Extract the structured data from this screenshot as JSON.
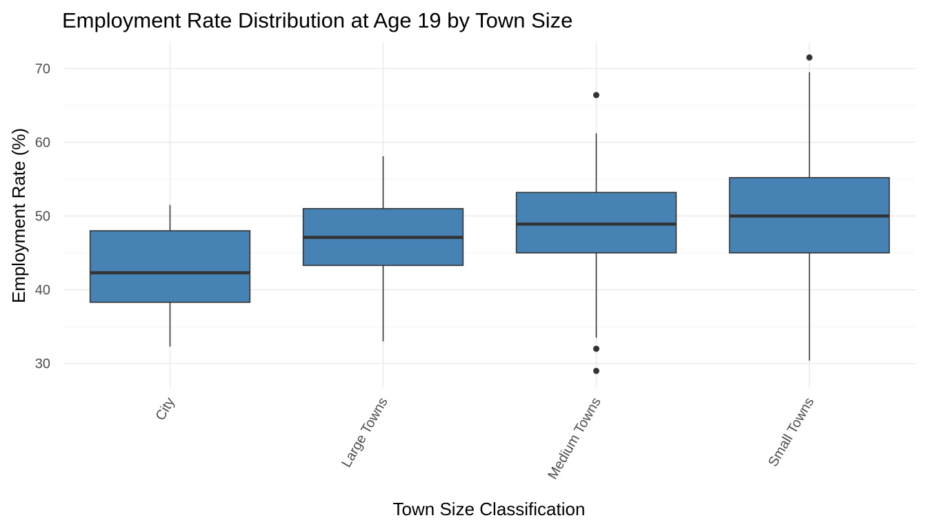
{
  "chart_data": {
    "type": "box",
    "title": "Employment Rate Distribution at Age 19 by Town Size",
    "xlabel": "Town Size Classification",
    "ylabel": "Employment Rate (%)",
    "ylim": [
      26.8,
      73.5
    ],
    "yticks": [
      30,
      40,
      50,
      60,
      70
    ],
    "grid": true,
    "fill_color": "#4682B4",
    "categories": [
      "City",
      "Large Towns",
      "Medium Towns",
      "Small Towns"
    ],
    "boxes": [
      {
        "category": "City",
        "whisker_low": 32.3,
        "q1": 38.3,
        "median": 42.3,
        "q3": 48.0,
        "whisker_high": 51.5,
        "outliers": []
      },
      {
        "category": "Large Towns",
        "whisker_low": 33.0,
        "q1": 43.3,
        "median": 47.1,
        "q3": 51.0,
        "whisker_high": 58.1,
        "outliers": []
      },
      {
        "category": "Medium Towns",
        "whisker_low": 33.5,
        "q1": 45.0,
        "median": 48.9,
        "q3": 53.2,
        "whisker_high": 61.2,
        "outliers": [
          66.4,
          32.0,
          29.0
        ]
      },
      {
        "category": "Small Towns",
        "whisker_low": 30.4,
        "q1": 45.0,
        "median": 50.0,
        "q3": 55.2,
        "whisker_high": 69.5,
        "outliers": [
          71.5
        ]
      }
    ]
  }
}
